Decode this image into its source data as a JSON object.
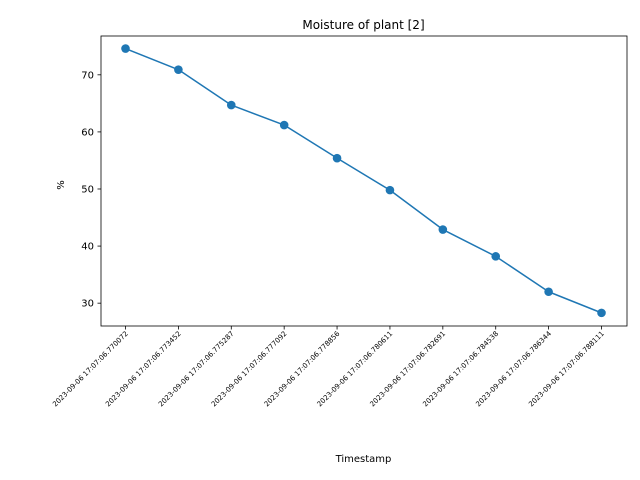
{
  "chart_data": {
    "type": "line",
    "title": "Moisture of plant [2]",
    "xlabel": "Timestamp",
    "ylabel": "%",
    "categories": [
      "2023-09-06 17:07:06.770072",
      "2023-09-06 17:07:06.773452",
      "2023-09-06 17:07:06.775287",
      "2023-09-06 17:07:06.777092",
      "2023-09-06 17:07:06.778856",
      "2023-09-06 17:07:06.780611",
      "2023-09-06 17:07:06.782691",
      "2023-09-06 17:07:06.784538",
      "2023-09-06 17:07:06.786344",
      "2023-09-06 17:07:06.788111"
    ],
    "series": [
      {
        "values": [
          74.6,
          70.9,
          64.7,
          61.2,
          55.4,
          49.8,
          42.9,
          38.2,
          32.0,
          28.3
        ]
      }
    ],
    "yticks": [
      30,
      40,
      50,
      60,
      70
    ],
    "ylim": [
      26.0,
      76.8
    ],
    "color": "#1f77b4",
    "marker": "circle",
    "grid": false,
    "legend": false
  }
}
